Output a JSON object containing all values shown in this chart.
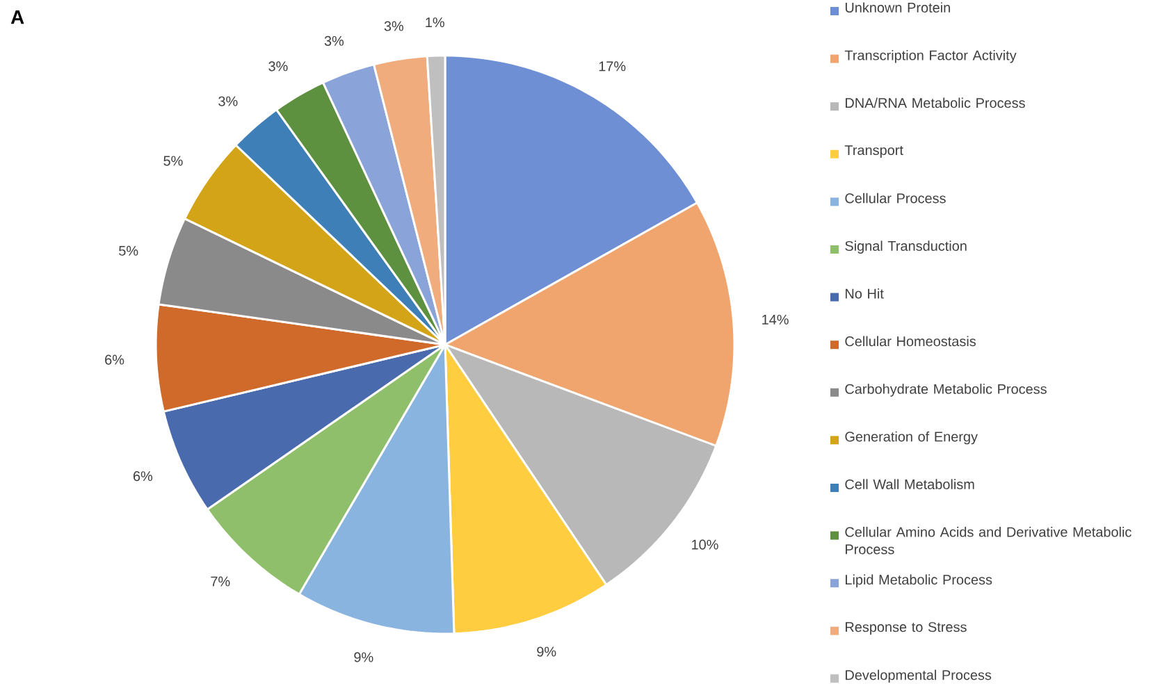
{
  "chart_data": {
    "type": "pie",
    "title": "A",
    "categories": [
      "Unknown Protein",
      "Transcription Factor Activity",
      "DNA/RNA Metabolic Process",
      "Transport",
      "Cellular Process",
      "Signal Transduction",
      "No Hit",
      "Cellular Homeostasis",
      "Carbohydrate Metabolic Process",
      "Generation of Energy",
      "Cell Wall Metabolism",
      "Cellular Amino Acids and Derivative Metabolic Process",
      "Lipid Metabolic Process",
      "Response to Stress",
      "Developmental Process"
    ],
    "values": [
      17,
      14,
      10,
      9,
      9,
      7,
      6,
      6,
      5,
      5,
      3,
      3,
      3,
      3,
      1
    ],
    "value_labels": [
      "17%",
      "14%",
      "10%",
      "9%",
      "9%",
      "7%",
      "6%",
      "6%",
      "5%",
      "5%",
      "3%",
      "3%",
      "3%",
      "3%",
      "1%"
    ],
    "colors": [
      "#6f8fd5",
      "#f0a46e",
      "#b8b8b8",
      "#ffcd3f",
      "#8ab4e0",
      "#8fbf6b",
      "#4a6aae",
      "#d06a2a",
      "#8a8a8a",
      "#d4a418",
      "#3f7fb8",
      "#5e913f",
      "#8aa4da",
      "#f1ac7e",
      "#bfbfbf"
    ],
    "legend": "right"
  }
}
